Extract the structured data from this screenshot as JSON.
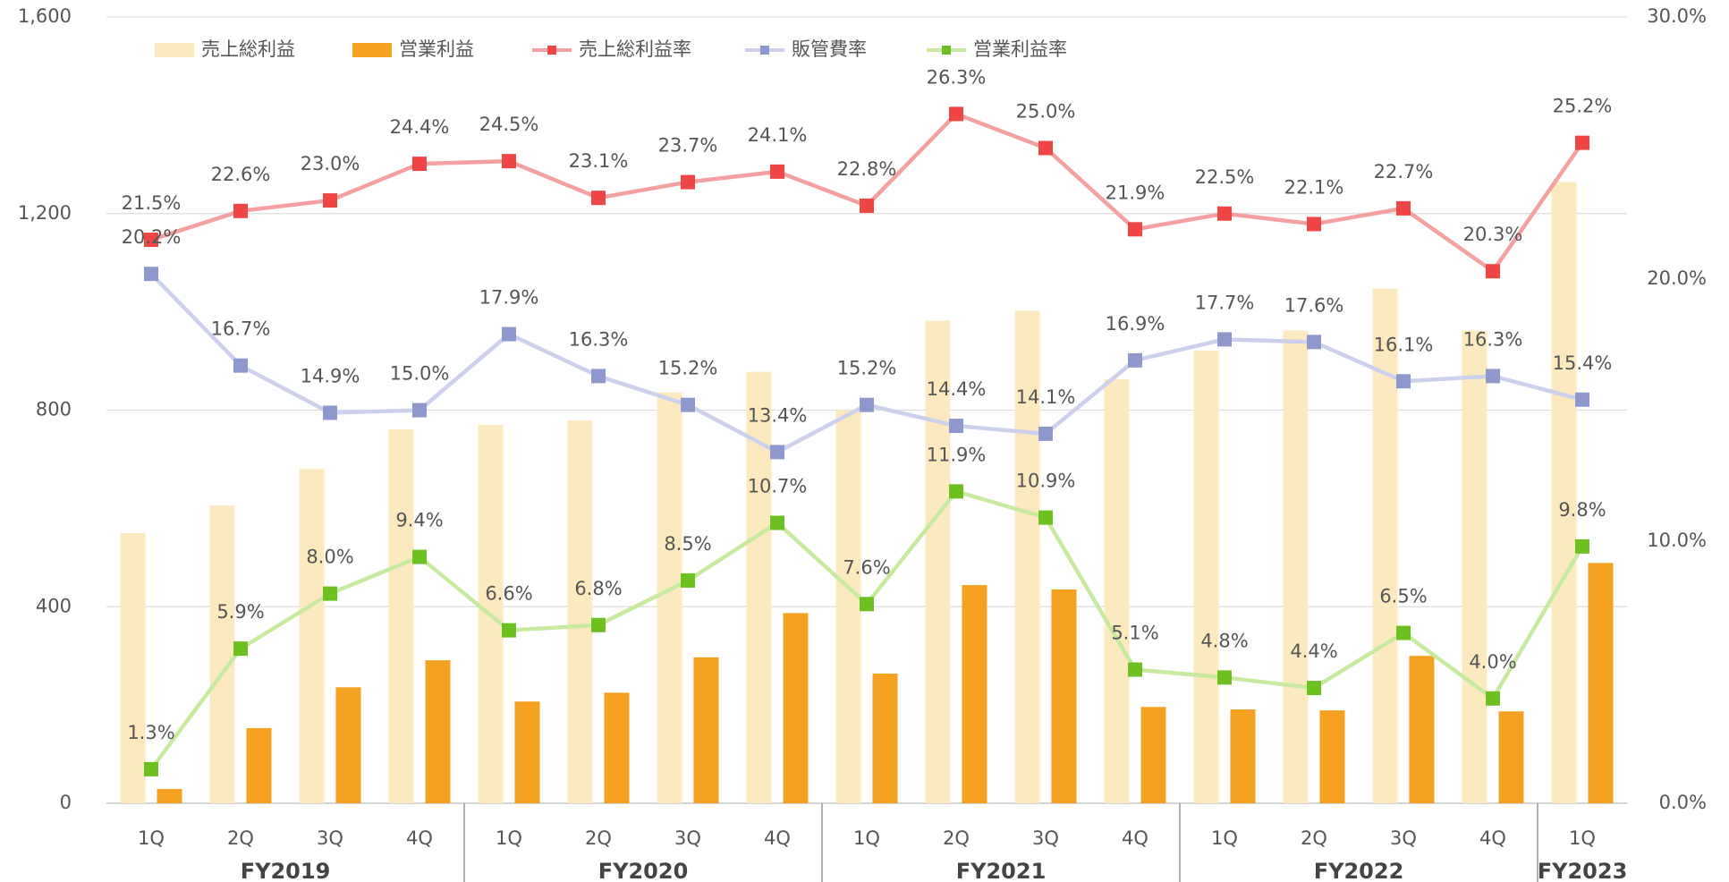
{
  "chart_data": {
    "type": "combo",
    "categories": [
      "1Q",
      "2Q",
      "3Q",
      "4Q",
      "1Q",
      "2Q",
      "3Q",
      "4Q",
      "1Q",
      "2Q",
      "3Q",
      "4Q",
      "1Q",
      "2Q",
      "3Q",
      "4Q",
      "1Q"
    ],
    "groups": [
      {
        "label": "FY2019",
        "count": 4
      },
      {
        "label": "FY2020",
        "count": 4
      },
      {
        "label": "FY2021",
        "count": 4
      },
      {
        "label": "FY2022",
        "count": 4
      },
      {
        "label": "FY2023",
        "count": 1
      }
    ],
    "ylim": [
      0,
      1600
    ],
    "yticks": [
      0,
      400,
      800,
      {
        "value": 1200,
        "label": "1,200"
      },
      {
        "value": 1600,
        "label": "1,600"
      }
    ],
    "y2lim": [
      0,
      30
    ],
    "y2ticks": [
      {
        "value": 0,
        "label": "0.0%"
      },
      {
        "value": 10,
        "label": "10.0%"
      },
      {
        "value": 20,
        "label": "20.0%"
      },
      {
        "value": 30,
        "label": "30.0%"
      }
    ],
    "grid": true,
    "legend": "top",
    "series": [
      {
        "name": "売上総利益",
        "type": "bar",
        "color": "#fde9c0",
        "values": [
          550,
          606,
          680,
          761,
          770,
          779,
          836,
          878,
          800,
          982,
          1002,
          863,
          921,
          962,
          1047,
          962,
          1264
        ]
      },
      {
        "name": "営業利益",
        "type": "bar",
        "color": "#f5a020",
        "values": [
          29,
          153,
          236,
          291,
          207,
          225,
          297,
          387,
          264,
          444,
          435,
          196,
          191,
          189,
          300,
          187,
          489
        ]
      },
      {
        "name": "売上総利益率",
        "type": "line",
        "axis": "y2",
        "color": "#f4a0a0",
        "marker_color": "#f04545",
        "values": [
          21.5,
          22.6,
          23.0,
          24.4,
          24.5,
          23.1,
          23.7,
          24.1,
          22.8,
          26.3,
          25.0,
          21.9,
          22.5,
          22.1,
          22.7,
          20.3,
          25.2
        ],
        "value_labels": [
          "21.5%",
          "22.6%",
          "23.0%",
          "24.4%",
          "24.5%",
          "23.1%",
          "23.7%",
          "24.1%",
          "22.8%",
          "26.3%",
          "25.0%",
          "21.9%",
          "22.5%",
          "22.1%",
          "22.7%",
          "20.3%",
          "25.2%"
        ]
      },
      {
        "name": "販管費率",
        "type": "line",
        "axis": "y2",
        "color": "#cdd0ec",
        "marker_color": "#8f98cc",
        "values": [
          20.2,
          16.7,
          14.9,
          15.0,
          17.9,
          16.3,
          15.2,
          13.4,
          15.2,
          14.4,
          14.1,
          16.9,
          17.7,
          17.6,
          16.1,
          16.3,
          15.4
        ],
        "value_labels": [
          "20.2%",
          "16.7%",
          "14.9%",
          "15.0%",
          "17.9%",
          "16.3%",
          "15.2%",
          "13.4%",
          "15.2%",
          "14.4%",
          "14.1%",
          "16.9%",
          "17.7%",
          "17.6%",
          "16.1%",
          "16.3%",
          "15.4%"
        ]
      },
      {
        "name": "営業利益率",
        "type": "line",
        "axis": "y2",
        "color": "#c8eaa0",
        "marker_color": "#6cc020",
        "values": [
          1.3,
          5.9,
          8.0,
          9.4,
          6.6,
          6.8,
          8.5,
          10.7,
          7.6,
          11.9,
          10.9,
          5.1,
          4.8,
          4.4,
          6.5,
          4.0,
          9.8
        ],
        "value_labels": [
          "1.3%",
          "5.9%",
          "8.0%",
          "9.4%",
          "6.6%",
          "6.8%",
          "8.5%",
          "10.7%",
          "7.6%",
          "11.9%",
          "10.9%",
          "5.1%",
          "4.8%",
          "4.4%",
          "6.5%",
          "4.0%",
          "9.8%"
        ]
      }
    ]
  }
}
